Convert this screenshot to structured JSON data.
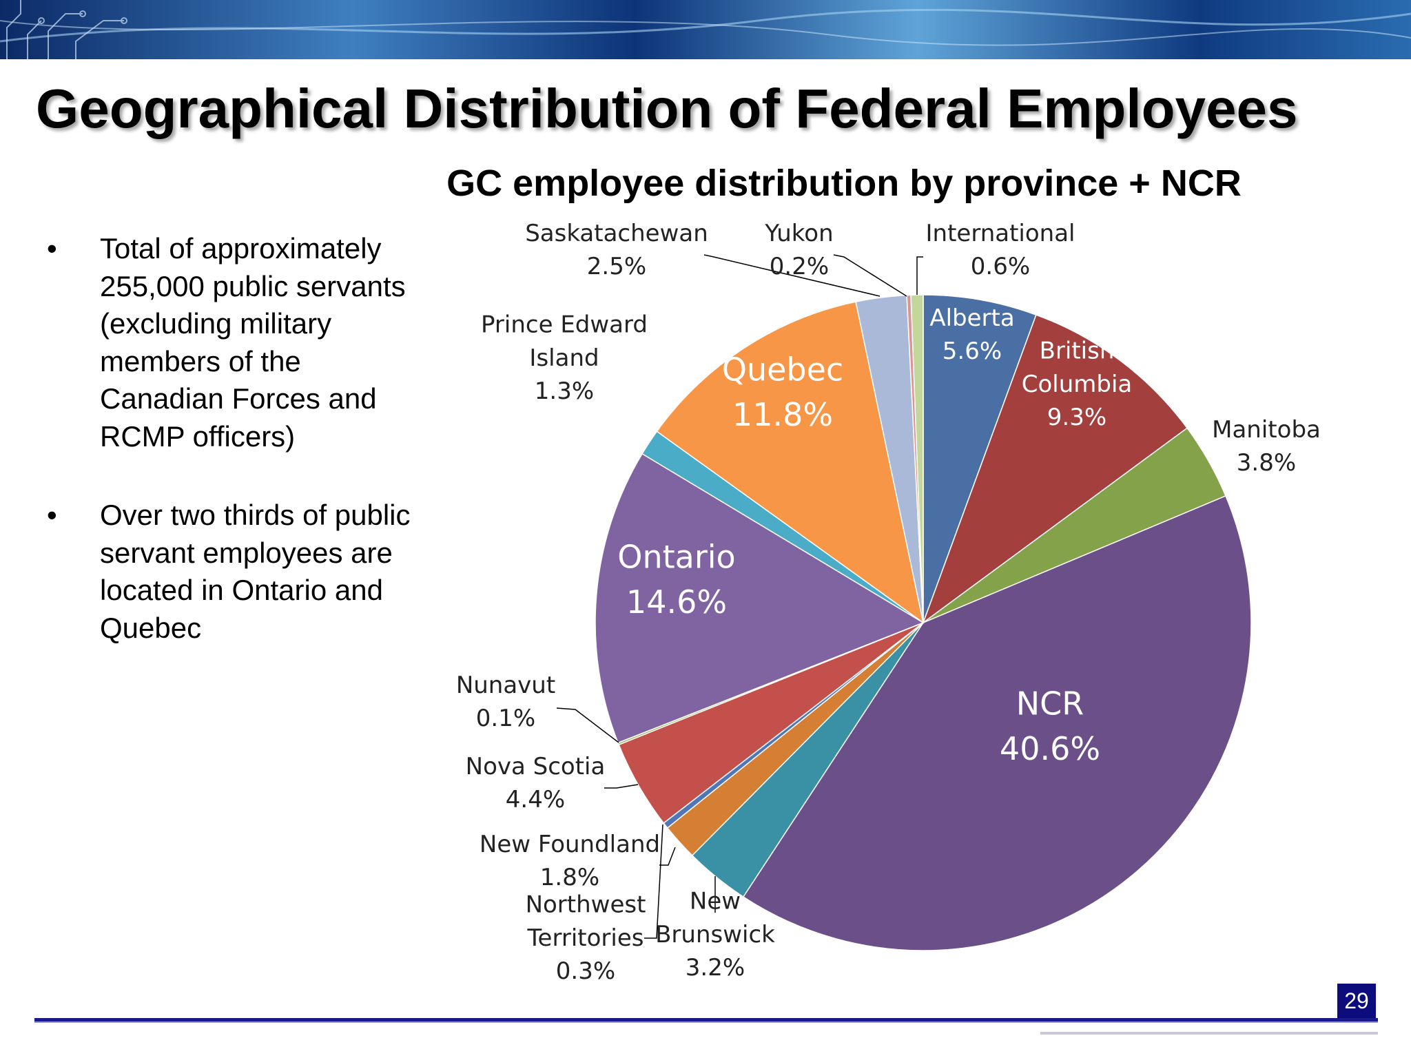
{
  "slide": {
    "title": "Geographical Distribution of Federal Employees",
    "bullet_symbol": "•",
    "bullets": [
      "Total of approximately 255,000 public servants (excluding military members of the Canadian Forces and RCMP officers)",
      "Over two thirds of public servant employees are located in Ontario and Quebec"
    ],
    "page_number": "29"
  },
  "colors": {
    "banner_dark": "#0b2a66",
    "banner_light": "#5fa4d8",
    "footer_line": "#1a1a8c",
    "page_badge": "#0c0c7c"
  },
  "chart_data": {
    "type": "pie",
    "title": "GC employee distribution by province + NCR",
    "start_angle_deg": 0,
    "direction": "clockwise",
    "slices": [
      {
        "label": "Alberta",
        "lines": [
          "Alberta",
          "5.6%"
        ],
        "value": 5.6,
        "color": "#4a6fa5",
        "label_color": "#ffffff"
      },
      {
        "label": "British Columbia",
        "lines": [
          "British",
          "Columbia",
          "9.3%"
        ],
        "value": 9.3,
        "color": "#a3403e",
        "label_color": "#ffffff"
      },
      {
        "label": "Manitoba",
        "lines": [
          "Manitoba",
          "3.8%"
        ],
        "value": 3.8,
        "color": "#84a24a",
        "label_color": "#222222"
      },
      {
        "label": "NCR",
        "lines": [
          "NCR",
          "40.6%"
        ],
        "value": 40.6,
        "color": "#6a4f88",
        "label_color": "#ffffff"
      },
      {
        "label": "New Brunswick",
        "lines": [
          "New",
          "Brunswick",
          "3.2%"
        ],
        "value": 3.2,
        "color": "#3a91a6",
        "label_color": "#222222"
      },
      {
        "label": "New Foundland",
        "lines": [
          "New Foundland",
          "1.8%"
        ],
        "value": 1.8,
        "color": "#d57f35",
        "label_color": "#222222"
      },
      {
        "label": "Northwest Territories",
        "lines": [
          "Northwest",
          "Territories",
          "0.3%"
        ],
        "value": 0.3,
        "color": "#4f76b8",
        "label_color": "#222222"
      },
      {
        "label": "Nova Scotia",
        "lines": [
          "Nova Scotia",
          "4.4%"
        ],
        "value": 4.4,
        "color": "#c4504c",
        "label_color": "#222222"
      },
      {
        "label": "Nunavut",
        "lines": [
          "Nunavut",
          "0.1%"
        ],
        "value": 0.1,
        "color": "#9bbb59",
        "label_color": "#222222"
      },
      {
        "label": "Ontario",
        "lines": [
          "Ontario",
          "14.6%"
        ],
        "value": 14.6,
        "color": "#8064a2",
        "label_color": "#ffffff"
      },
      {
        "label": "Prince Edward Island",
        "lines": [
          "Prince Edward",
          "Island",
          "1.3%"
        ],
        "value": 1.3,
        "color": "#4aacc6",
        "label_color": "#222222"
      },
      {
        "label": "Quebec",
        "lines": [
          "Quebec",
          "11.8%"
        ],
        "value": 11.8,
        "color": "#f79646",
        "label_color": "#ffffff"
      },
      {
        "label": "Saskatachewan",
        "lines": [
          "Saskatachewan",
          "2.5%"
        ],
        "value": 2.5,
        "color": "#aab9d8",
        "label_color": "#222222"
      },
      {
        "label": "Yukon",
        "lines": [
          "Yukon",
          "0.2%"
        ],
        "value": 0.2,
        "color": "#d99694",
        "label_color": "#222222"
      },
      {
        "label": "International",
        "lines": [
          "International",
          "0.6%"
        ],
        "value": 0.6,
        "color": "#c3d69b",
        "label_color": "#222222"
      }
    ]
  }
}
